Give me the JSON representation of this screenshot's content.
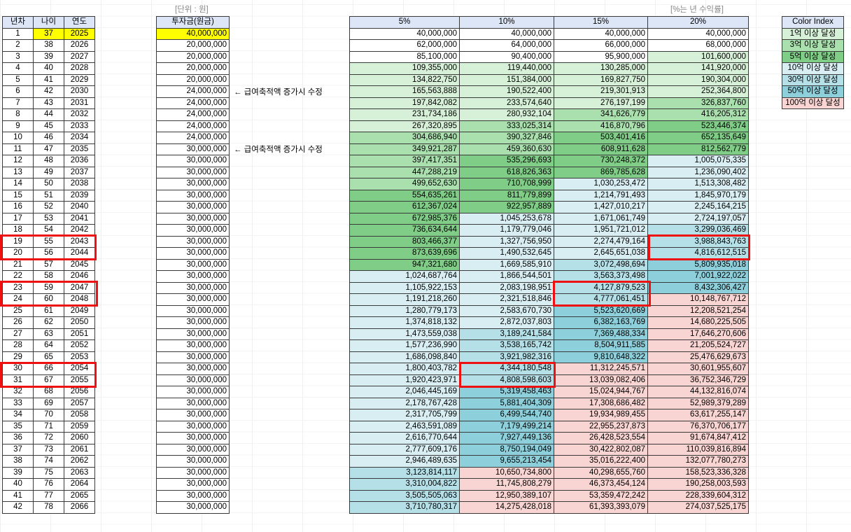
{
  "captions": {
    "unit": "[단위 : 원]",
    "rate": "[%는 년 수익률]"
  },
  "headers": {
    "year_no": "년차",
    "age": "나이",
    "year": "연도",
    "invest": "투자금(원금)",
    "rates": [
      "5%",
      "10%",
      "15%",
      "20%"
    ]
  },
  "note": "← 급여축적액 증가시 수정",
  "note_rows": [
    6,
    11
  ],
  "colors": {
    "c0": "#ffffff",
    "c1": "#d7f0d8",
    "c2": "#aadfae",
    "c3": "#7fcd86",
    "c4": "#d9eef2",
    "c5": "#b6e0e8",
    "c6": "#8dd0dc",
    "c7": "#f8d4d2",
    "header": "#dde6f6",
    "yellow": "#ffff00",
    "highlight": "#ee1111"
  },
  "color_index": {
    "title": "Color Index",
    "items": [
      {
        "label": "1억 이상 달성",
        "level": 1
      },
      {
        "label": "3억 이상 달성",
        "level": 2
      },
      {
        "label": "5억 이상 달성",
        "level": 3
      },
      {
        "label": "10억 이상 달성",
        "level": 4
      },
      {
        "label": "30억 이상 달성",
        "level": 5
      },
      {
        "label": "50억 이상 달성",
        "level": 6
      },
      {
        "label": "100억 이상 달성",
        "level": 7
      }
    ]
  },
  "rows": [
    {
      "n": "1",
      "age": "37",
      "year": "2025",
      "invest": "40,000,000",
      "r": [
        "40,000,000",
        "40,000,000",
        "40,000,000",
        "40,000,000"
      ],
      "lv": [
        0,
        0,
        0,
        0
      ]
    },
    {
      "n": "2",
      "age": "38",
      "year": "2026",
      "invest": "20,000,000",
      "r": [
        "62,000,000",
        "64,000,000",
        "66,000,000",
        "68,000,000"
      ],
      "lv": [
        0,
        0,
        0,
        0
      ]
    },
    {
      "n": "3",
      "age": "39",
      "year": "2027",
      "invest": "20,000,000",
      "r": [
        "85,100,000",
        "90,400,000",
        "95,900,000",
        "101,600,000"
      ],
      "lv": [
        0,
        0,
        0,
        1
      ]
    },
    {
      "n": "4",
      "age": "40",
      "year": "2028",
      "invest": "20,000,000",
      "r": [
        "109,355,000",
        "119,440,000",
        "130,285,000",
        "141,920,000"
      ],
      "lv": [
        1,
        1,
        1,
        1
      ]
    },
    {
      "n": "5",
      "age": "41",
      "year": "2029",
      "invest": "20,000,000",
      "r": [
        "134,822,750",
        "151,384,000",
        "169,827,750",
        "190,304,000"
      ],
      "lv": [
        1,
        1,
        1,
        1
      ]
    },
    {
      "n": "6",
      "age": "42",
      "year": "2030",
      "invest": "24,000,000",
      "r": [
        "165,563,888",
        "190,522,400",
        "219,301,913",
        "252,364,800"
      ],
      "lv": [
        1,
        1,
        1,
        1
      ]
    },
    {
      "n": "7",
      "age": "43",
      "year": "2031",
      "invest": "24,000,000",
      "r": [
        "197,842,082",
        "233,574,640",
        "276,197,199",
        "326,837,760"
      ],
      "lv": [
        1,
        1,
        1,
        2
      ]
    },
    {
      "n": "8",
      "age": "44",
      "year": "2032",
      "invest": "24,000,000",
      "r": [
        "231,734,186",
        "280,932,104",
        "341,626,779",
        "416,205,312"
      ],
      "lv": [
        1,
        1,
        2,
        2
      ]
    },
    {
      "n": "9",
      "age": "45",
      "year": "2033",
      "invest": "24,000,000",
      "r": [
        "267,320,895",
        "333,025,314",
        "416,870,796",
        "523,446,374"
      ],
      "lv": [
        1,
        2,
        2,
        3
      ]
    },
    {
      "n": "10",
      "age": "46",
      "year": "2034",
      "invest": "24,000,000",
      "r": [
        "304,686,940",
        "390,327,846",
        "503,401,416",
        "652,135,649"
      ],
      "lv": [
        2,
        2,
        3,
        3
      ]
    },
    {
      "n": "11",
      "age": "47",
      "year": "2035",
      "invest": "30,000,000",
      "r": [
        "349,921,287",
        "459,360,630",
        "608,911,628",
        "812,562,779"
      ],
      "lv": [
        2,
        2,
        3,
        3
      ]
    },
    {
      "n": "12",
      "age": "48",
      "year": "2036",
      "invest": "30,000,000",
      "r": [
        "397,417,351",
        "535,296,693",
        "730,248,372",
        "1,005,075,335"
      ],
      "lv": [
        2,
        3,
        3,
        4
      ]
    },
    {
      "n": "13",
      "age": "49",
      "year": "2037",
      "invest": "30,000,000",
      "r": [
        "447,288,219",
        "618,826,363",
        "869,785,628",
        "1,236,090,402"
      ],
      "lv": [
        2,
        3,
        3,
        4
      ]
    },
    {
      "n": "14",
      "age": "50",
      "year": "2038",
      "invest": "30,000,000",
      "r": [
        "499,652,630",
        "710,708,999",
        "1,030,253,472",
        "1,513,308,482"
      ],
      "lv": [
        2,
        3,
        4,
        4
      ]
    },
    {
      "n": "15",
      "age": "51",
      "year": "2039",
      "invest": "30,000,000",
      "r": [
        "554,635,261",
        "811,779,899",
        "1,214,791,493",
        "1,845,970,179"
      ],
      "lv": [
        3,
        3,
        4,
        4
      ]
    },
    {
      "n": "16",
      "age": "52",
      "year": "2040",
      "invest": "30,000,000",
      "r": [
        "612,367,024",
        "922,957,889",
        "1,427,010,217",
        "2,245,164,215"
      ],
      "lv": [
        3,
        3,
        4,
        4
      ]
    },
    {
      "n": "17",
      "age": "53",
      "year": "2041",
      "invest": "30,000,000",
      "r": [
        "672,985,376",
        "1,045,253,678",
        "1,671,061,749",
        "2,724,197,057"
      ],
      "lv": [
        3,
        4,
        4,
        4
      ]
    },
    {
      "n": "18",
      "age": "54",
      "year": "2042",
      "invest": "30,000,000",
      "r": [
        "736,634,644",
        "1,179,779,046",
        "1,951,721,012",
        "3,299,036,469"
      ],
      "lv": [
        3,
        4,
        4,
        5
      ]
    },
    {
      "n": "19",
      "age": "55",
      "year": "2043",
      "invest": "30,000,000",
      "r": [
        "803,466,377",
        "1,327,756,950",
        "2,274,479,164",
        "3,988,843,763"
      ],
      "lv": [
        3,
        4,
        4,
        5
      ]
    },
    {
      "n": "20",
      "age": "56",
      "year": "2044",
      "invest": "30,000,000",
      "r": [
        "873,639,696",
        "1,490,532,645",
        "2,645,651,038",
        "4,816,612,515"
      ],
      "lv": [
        3,
        4,
        4,
        5
      ]
    },
    {
      "n": "21",
      "age": "57",
      "year": "2045",
      "invest": "30,000,000",
      "r": [
        "947,321,680",
        "1,669,585,910",
        "3,072,498,694",
        "5,809,935,018"
      ],
      "lv": [
        3,
        4,
        5,
        6
      ]
    },
    {
      "n": "22",
      "age": "58",
      "year": "2046",
      "invest": "30,000,000",
      "r": [
        "1,024,687,764",
        "1,866,544,501",
        "3,563,373,498",
        "7,001,922,022"
      ],
      "lv": [
        4,
        4,
        5,
        6
      ]
    },
    {
      "n": "23",
      "age": "59",
      "year": "2047",
      "invest": "30,000,000",
      "r": [
        "1,105,922,153",
        "2,083,198,951",
        "4,127,879,523",
        "8,432,306,427"
      ],
      "lv": [
        4,
        4,
        5,
        6
      ]
    },
    {
      "n": "24",
      "age": "60",
      "year": "2048",
      "invest": "30,000,000",
      "r": [
        "1,191,218,260",
        "2,321,518,846",
        "4,777,061,451",
        "10,148,767,712"
      ],
      "lv": [
        4,
        4,
        5,
        7
      ]
    },
    {
      "n": "25",
      "age": "61",
      "year": "2049",
      "invest": "30,000,000",
      "r": [
        "1,280,779,173",
        "2,583,670,730",
        "5,523,620,669",
        "12,208,521,254"
      ],
      "lv": [
        4,
        4,
        6,
        7
      ]
    },
    {
      "n": "26",
      "age": "62",
      "year": "2050",
      "invest": "30,000,000",
      "r": [
        "1,374,818,132",
        "2,872,037,803",
        "6,382,163,769",
        "14,680,225,505"
      ],
      "lv": [
        4,
        4,
        6,
        7
      ]
    },
    {
      "n": "27",
      "age": "63",
      "year": "2051",
      "invest": "30,000,000",
      "r": [
        "1,473,559,038",
        "3,189,241,584",
        "7,369,488,334",
        "17,646,270,606"
      ],
      "lv": [
        4,
        5,
        6,
        7
      ]
    },
    {
      "n": "28",
      "age": "64",
      "year": "2052",
      "invest": "30,000,000",
      "r": [
        "1,577,236,990",
        "3,538,165,742",
        "8,504,911,585",
        "21,205,524,727"
      ],
      "lv": [
        4,
        5,
        6,
        7
      ]
    },
    {
      "n": "29",
      "age": "65",
      "year": "2053",
      "invest": "30,000,000",
      "r": [
        "1,686,098,840",
        "3,921,982,316",
        "9,810,648,322",
        "25,476,629,673"
      ],
      "lv": [
        4,
        5,
        6,
        7
      ]
    },
    {
      "n": "30",
      "age": "66",
      "year": "2054",
      "invest": "30,000,000",
      "r": [
        "1,800,403,782",
        "4,344,180,548",
        "11,312,245,571",
        "30,601,955,607"
      ],
      "lv": [
        4,
        5,
        7,
        7
      ]
    },
    {
      "n": "31",
      "age": "67",
      "year": "2055",
      "invest": "30,000,000",
      "r": [
        "1,920,423,971",
        "4,808,598,603",
        "13,039,082,406",
        "36,752,346,729"
      ],
      "lv": [
        4,
        5,
        7,
        7
      ]
    },
    {
      "n": "32",
      "age": "68",
      "year": "2056",
      "invest": "30,000,000",
      "r": [
        "2,046,445,169",
        "5,319,458,463",
        "15,024,944,767",
        "44,132,816,074"
      ],
      "lv": [
        4,
        6,
        7,
        7
      ]
    },
    {
      "n": "33",
      "age": "69",
      "year": "2057",
      "invest": "30,000,000",
      "r": [
        "2,178,767,428",
        "5,881,404,309",
        "17,308,686,482",
        "52,989,379,289"
      ],
      "lv": [
        4,
        6,
        7,
        7
      ]
    },
    {
      "n": "34",
      "age": "70",
      "year": "2058",
      "invest": "30,000,000",
      "r": [
        "2,317,705,799",
        "6,499,544,740",
        "19,934,989,455",
        "63,617,255,147"
      ],
      "lv": [
        4,
        6,
        7,
        7
      ]
    },
    {
      "n": "35",
      "age": "71",
      "year": "2059",
      "invest": "30,000,000",
      "r": [
        "2,463,591,089",
        "7,179,499,214",
        "22,955,237,873",
        "76,370,706,177"
      ],
      "lv": [
        4,
        6,
        7,
        7
      ]
    },
    {
      "n": "36",
      "age": "72",
      "year": "2060",
      "invest": "30,000,000",
      "r": [
        "2,616,770,644",
        "7,927,449,136",
        "26,428,523,554",
        "91,674,847,412"
      ],
      "lv": [
        4,
        6,
        7,
        7
      ]
    },
    {
      "n": "37",
      "age": "73",
      "year": "2061",
      "invest": "30,000,000",
      "r": [
        "2,777,609,176",
        "8,750,194,049",
        "30,422,802,087",
        "110,039,816,894"
      ],
      "lv": [
        4,
        6,
        7,
        7
      ]
    },
    {
      "n": "38",
      "age": "74",
      "year": "2062",
      "invest": "30,000,000",
      "r": [
        "2,946,489,635",
        "9,655,213,454",
        "35,016,222,400",
        "132,077,780,273"
      ],
      "lv": [
        4,
        6,
        7,
        7
      ]
    },
    {
      "n": "39",
      "age": "75",
      "year": "2063",
      "invest": "30,000,000",
      "r": [
        "3,123,814,117",
        "10,650,734,800",
        "40,298,655,760",
        "158,523,336,328"
      ],
      "lv": [
        5,
        7,
        7,
        7
      ]
    },
    {
      "n": "40",
      "age": "76",
      "year": "2064",
      "invest": "30,000,000",
      "r": [
        "3,310,004,822",
        "11,745,808,279",
        "46,373,454,124",
        "190,258,003,593"
      ],
      "lv": [
        5,
        7,
        7,
        7
      ]
    },
    {
      "n": "41",
      "age": "77",
      "year": "2065",
      "invest": "30,000,000",
      "r": [
        "3,505,505,063",
        "12,950,389,107",
        "53,359,472,242",
        "228,339,604,312"
      ],
      "lv": [
        5,
        7,
        7,
        7
      ]
    },
    {
      "n": "42",
      "age": "78",
      "year": "2066",
      "invest": "30,000,000",
      "r": [
        "3,710,780,317",
        "14,275,428,018",
        "61,393,393,079",
        "274,037,525,175"
      ],
      "lv": [
        5,
        7,
        7,
        7
      ]
    }
  ]
}
